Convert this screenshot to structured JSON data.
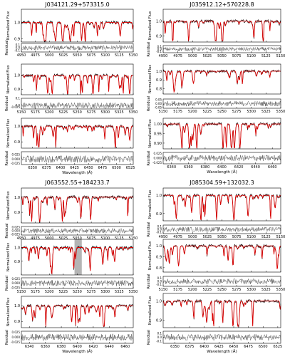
{
  "figure": {
    "y_axis_flux_label": "Normalized Flux",
    "y_axis_residual_label": "Residual",
    "x_axis_label": "Wavelength (Å)"
  },
  "chart_data": [
    {
      "type": "line",
      "title": "J034121.29+573315.0",
      "panels": [
        {
          "xlim": [
            4950,
            5150
          ],
          "xticks": [
            "4950",
            "4975",
            "5000",
            "5025",
            "5050",
            "5075",
            "5100",
            "5125",
            "5150"
          ],
          "flux_ylim": [
            0.88,
            1.08
          ],
          "flux_yticks": [
            "1.0",
            "0.9"
          ],
          "resid_ylim": [
            -0.15,
            0.15
          ],
          "resid_yticks": [
            "0.1",
            "0.0",
            "-0.1"
          ],
          "shaded": []
        },
        {
          "xlim": [
            5150,
            5350
          ],
          "xticks": [
            "5150",
            "5175",
            "5200",
            "5225",
            "5250",
            "5275",
            "5300",
            "5325",
            "5350"
          ],
          "flux_ylim": [
            0.86,
            1.08
          ],
          "flux_yticks": [
            "1.0",
            "0.9"
          ],
          "resid_ylim": [
            -0.05,
            0.1
          ],
          "resid_yticks": [
            "0.1",
            "0.0",
            "-0.025"
          ],
          "shaded": []
        },
        {
          "xlim": [
            6330,
            6530
          ],
          "xticks": [
            "6350",
            "6375",
            "6400",
            "6425",
            "6450",
            "6475",
            "6500",
            "6525"
          ],
          "flux_ylim": [
            0.86,
            1.05
          ],
          "flux_yticks": [
            "1.0",
            "0.9"
          ],
          "resid_ylim": [
            -0.03,
            0.04
          ],
          "resid_yticks": [
            "0.025",
            "0.000",
            "-0.025"
          ],
          "shaded": []
        }
      ]
    },
    {
      "type": "line",
      "title": "J035912.12+570228.8",
      "panels": [
        {
          "xlim": [
            4950,
            5150
          ],
          "xticks": [
            "4950",
            "4975",
            "5000",
            "5025",
            "5050",
            "5075",
            "5100",
            "5125",
            "5150"
          ],
          "flux_ylim": [
            0.86,
            1.08
          ],
          "flux_yticks": [
            "1.0",
            "0.9"
          ],
          "resid_ylim": [
            -0.15,
            0.15
          ],
          "resid_yticks": [
            "0.1",
            "0.0",
            "-0.1"
          ],
          "shaded": []
        },
        {
          "xlim": [
            5150,
            5350
          ],
          "xticks": [
            "5150",
            "5175",
            "5200",
            "5225",
            "5250",
            "5275",
            "5300",
            "5325",
            "5350"
          ],
          "flux_ylim": [
            0.74,
            1.08
          ],
          "flux_yticks": [
            "1.0",
            "0.9",
            "0.8"
          ],
          "resid_ylim": [
            -0.06,
            0.06
          ],
          "resid_yticks": [
            "0.05",
            "0.00",
            "-0.05"
          ],
          "shaded": []
        },
        {
          "xlim": [
            6330,
            6470
          ],
          "xticks": [
            "6340",
            "6360",
            "6380",
            "6400",
            "6420",
            "6440",
            "6460"
          ],
          "flux_ylim": [
            0.87,
            1.03
          ],
          "flux_yticks": [
            "1.00",
            "0.95",
            "0.90"
          ],
          "resid_ylim": [
            -0.03,
            0.03
          ],
          "resid_yticks": [
            "0.025",
            "0.000",
            "-0.025"
          ],
          "shaded": []
        }
      ]
    },
    {
      "type": "line",
      "title": "J063552.55+184233.7",
      "panels": [
        {
          "xlim": [
            4950,
            5150
          ],
          "xticks": [
            "4950",
            "4975",
            "5000",
            "5025",
            "5050",
            "5075",
            "5100",
            "5125",
            "5150"
          ],
          "flux_ylim": [
            0.83,
            1.06
          ],
          "flux_yticks": [
            "1.0",
            "0.9"
          ],
          "resid_ylim": [
            -0.03,
            0.03
          ],
          "resid_yticks": [
            "0.025",
            "0.000",
            "-0.025"
          ],
          "shaded": []
        },
        {
          "xlim": [
            5150,
            5350
          ],
          "xticks": [
            "5150",
            "5175",
            "5200",
            "5225",
            "5250",
            "5275",
            "5300",
            "5325",
            "5350"
          ],
          "flux_ylim": [
            0.8,
            1.06
          ],
          "flux_yticks": [
            "1.0",
            "0.9"
          ],
          "resid_ylim": [
            -0.03,
            0.03
          ],
          "resid_yticks": [
            "0.025",
            "0.000",
            "-0.025"
          ],
          "shaded": [
            [
              5245,
              5258
            ]
          ]
        },
        {
          "xlim": [
            6330,
            6470
          ],
          "xticks": [
            "6340",
            "6360",
            "6380",
            "6400",
            "6420",
            "6440",
            "6460"
          ],
          "flux_ylim": [
            0.86,
            1.06
          ],
          "flux_yticks": [
            "1.0",
            "0.9"
          ],
          "resid_ylim": [
            -0.03,
            0.03
          ],
          "resid_yticks": [
            "0.025",
            "0.000",
            "-0.025"
          ],
          "shaded": []
        }
      ]
    },
    {
      "type": "line",
      "title": "J085304.59+132032.3",
      "panels": [
        {
          "xlim": [
            4950,
            5150
          ],
          "xticks": [
            "4950",
            "4975",
            "5000",
            "5025",
            "5050",
            "5075",
            "5100",
            "5125",
            "5150"
          ],
          "flux_ylim": [
            0.86,
            1.04
          ],
          "flux_yticks": [
            "1.0",
            "0.9"
          ],
          "resid_ylim": [
            -0.15,
            0.15
          ],
          "resid_yticks": [
            "0.1",
            "0.0",
            "-0.1"
          ],
          "shaded": []
        },
        {
          "xlim": [
            5150,
            5350
          ],
          "xticks": [
            "5150",
            "5175",
            "5200",
            "5225",
            "5250",
            "5275",
            "5300",
            "5325",
            "5350"
          ],
          "flux_ylim": [
            0.76,
            1.06
          ],
          "flux_yticks": [
            "1.0",
            "0.9",
            "0.8"
          ],
          "resid_ylim": [
            -0.15,
            0.15
          ],
          "resid_yticks": [
            "0.1",
            "0.0",
            "-0.1"
          ],
          "shaded": []
        },
        {
          "xlim": [
            6330,
            6530
          ],
          "xticks": [
            "6350",
            "6375",
            "6400",
            "6425",
            "6450",
            "6475",
            "6500",
            "6525"
          ],
          "flux_ylim": [
            0.86,
            1.04
          ],
          "flux_yticks": [
            "1.0",
            "0.9"
          ],
          "resid_ylim": [
            -0.15,
            0.15
          ],
          "resid_yticks": [
            "0.1",
            "0.0",
            "-0.1"
          ],
          "shaded": []
        }
      ]
    }
  ],
  "colors": {
    "observed": "#000000",
    "model": "#dd0000",
    "shade": "#b4b4b4",
    "residual": "#333333"
  }
}
